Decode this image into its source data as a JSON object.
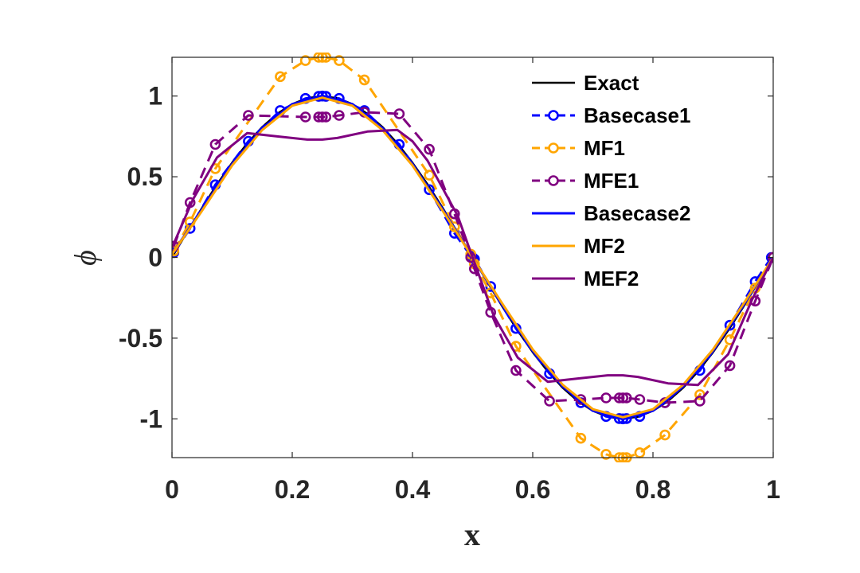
{
  "chart_data": {
    "type": "line",
    "title": "",
    "xlabel": "x",
    "ylabel": "ϕ",
    "xlim": [
      0,
      1
    ],
    "ylim": [
      -1.24,
      1.24
    ],
    "xticks": [
      0,
      0.2,
      0.4,
      0.6,
      0.8,
      1
    ],
    "xtick_labels": [
      "0",
      "0.2",
      "0.4",
      "0.6",
      "0.8",
      "1"
    ],
    "yticks": [
      -1,
      -0.5,
      0,
      0.5,
      1
    ],
    "ytick_labels": [
      "-1",
      "-0.5",
      "0",
      "0.5",
      "1"
    ],
    "grid": false,
    "legend_position": "top-right",
    "series": [
      {
        "name": "Exact",
        "color": "#000000",
        "dash": "solid",
        "markers": false,
        "x": [
          0,
          0.025,
          0.05,
          0.075,
          0.1,
          0.125,
          0.15,
          0.175,
          0.2,
          0.225,
          0.25,
          0.275,
          0.3,
          0.325,
          0.35,
          0.375,
          0.4,
          0.425,
          0.45,
          0.475,
          0.5,
          0.525,
          0.55,
          0.575,
          0.6,
          0.625,
          0.65,
          0.675,
          0.7,
          0.725,
          0.75,
          0.775,
          0.8,
          0.825,
          0.85,
          0.875,
          0.9,
          0.925,
          0.95,
          0.975,
          1
        ],
        "y": [
          0,
          0.156,
          0.309,
          0.454,
          0.588,
          0.707,
          0.809,
          0.891,
          0.951,
          0.988,
          1,
          0.988,
          0.951,
          0.891,
          0.809,
          0.707,
          0.588,
          0.454,
          0.309,
          0.156,
          0,
          -0.156,
          -0.309,
          -0.454,
          -0.588,
          -0.707,
          -0.809,
          -0.891,
          -0.951,
          -0.988,
          -1,
          -0.988,
          -0.951,
          -0.891,
          -0.809,
          -0.707,
          -0.588,
          -0.454,
          -0.309,
          -0.156,
          0
        ]
      },
      {
        "name": "Basecase1",
        "color": "#0000ff",
        "dash": "dashed",
        "markers": true,
        "x": [
          0.003,
          0.03,
          0.072,
          0.127,
          0.18,
          0.222,
          0.244,
          0.25,
          0.256,
          0.278,
          0.32,
          0.378,
          0.428,
          0.47,
          0.497,
          0.5,
          0.503,
          0.53,
          0.572,
          0.628,
          0.68,
          0.722,
          0.744,
          0.75,
          0.756,
          0.778,
          0.82,
          0.878,
          0.928,
          0.97,
          0.997
        ],
        "y": [
          0.03,
          0.18,
          0.45,
          0.72,
          0.91,
          0.985,
          0.998,
          1,
          0.998,
          0.985,
          0.91,
          0.7,
          0.42,
          0.15,
          0.01,
          0,
          -0.01,
          -0.18,
          -0.44,
          -0.72,
          -0.9,
          -0.985,
          -0.998,
          -1,
          -0.998,
          -0.985,
          -0.9,
          -0.7,
          -0.42,
          -0.15,
          0
        ]
      },
      {
        "name": "MF1",
        "color": "#ffa500",
        "dash": "dashed",
        "markers": true,
        "x": [
          0.003,
          0.03,
          0.072,
          0.18,
          0.222,
          0.244,
          0.25,
          0.256,
          0.278,
          0.32,
          0.428,
          0.47,
          0.497,
          0.503,
          0.53,
          0.572,
          0.68,
          0.722,
          0.744,
          0.75,
          0.756,
          0.778,
          0.82,
          0.878,
          0.928,
          0.97,
          1
        ],
        "y": [
          0.04,
          0.22,
          0.55,
          1.12,
          1.22,
          1.24,
          1.24,
          1.24,
          1.22,
          1.1,
          0.51,
          0.19,
          0.02,
          -0.04,
          -0.22,
          -0.55,
          -1.12,
          -1.22,
          -1.24,
          -1.24,
          -1.24,
          -1.21,
          -1.1,
          -0.85,
          -0.51,
          -0.19,
          0
        ]
      },
      {
        "name": "MFE1",
        "color": "#800080",
        "dash": "dashed",
        "markers": true,
        "x": [
          0.003,
          0.03,
          0.072,
          0.127,
          0.222,
          0.244,
          0.25,
          0.256,
          0.278,
          0.32,
          0.378,
          0.428,
          0.47,
          0.497,
          0.503,
          0.53,
          0.572,
          0.628,
          0.68,
          0.722,
          0.744,
          0.75,
          0.756,
          0.778,
          0.82,
          0.878,
          0.928,
          0.97,
          1
        ],
        "y": [
          0.07,
          0.34,
          0.7,
          0.88,
          0.87,
          0.87,
          0.87,
          0.87,
          0.88,
          0.9,
          0.89,
          0.67,
          0.27,
          0,
          -0.07,
          -0.34,
          -0.7,
          -0.89,
          -0.88,
          -0.87,
          -0.87,
          -0.87,
          -0.87,
          -0.88,
          -0.9,
          -0.89,
          -0.67,
          -0.27,
          0
        ]
      },
      {
        "name": "Basecase2",
        "color": "#0000ff",
        "dash": "solid",
        "markers": false,
        "x": [
          0,
          0.05,
          0.1,
          0.15,
          0.2,
          0.25,
          0.3,
          0.35,
          0.4,
          0.45,
          0.5,
          0.55,
          0.6,
          0.65,
          0.7,
          0.75,
          0.8,
          0.85,
          0.9,
          0.95,
          1
        ],
        "y": [
          0.02,
          0.3,
          0.58,
          0.8,
          0.95,
          1,
          0.95,
          0.8,
          0.58,
          0.3,
          0,
          -0.3,
          -0.58,
          -0.8,
          -0.95,
          -1,
          -0.95,
          -0.8,
          -0.58,
          -0.3,
          0
        ]
      },
      {
        "name": "MF2",
        "color": "#ffa500",
        "dash": "solid",
        "markers": false,
        "x": [
          0,
          0.05,
          0.1,
          0.15,
          0.2,
          0.25,
          0.3,
          0.35,
          0.4,
          0.45,
          0.5,
          0.55,
          0.6,
          0.65,
          0.7,
          0.75,
          0.8,
          0.85,
          0.9,
          0.95,
          1
        ],
        "y": [
          0.02,
          0.29,
          0.57,
          0.79,
          0.94,
          0.99,
          0.94,
          0.79,
          0.57,
          0.29,
          0,
          -0.29,
          -0.57,
          -0.79,
          -0.94,
          -0.99,
          -0.94,
          -0.79,
          -0.57,
          -0.29,
          0
        ]
      },
      {
        "name": "MEF2",
        "color": "#800080",
        "dash": "solid",
        "markers": false,
        "x": [
          0,
          0.035,
          0.075,
          0.125,
          0.175,
          0.225,
          0.25,
          0.275,
          0.325,
          0.375,
          0.4,
          0.425,
          0.475,
          0.5,
          0.535,
          0.575,
          0.625,
          0.675,
          0.725,
          0.75,
          0.775,
          0.825,
          0.875,
          0.925,
          0.965,
          1
        ],
        "y": [
          0.06,
          0.36,
          0.62,
          0.77,
          0.75,
          0.73,
          0.73,
          0.74,
          0.78,
          0.79,
          0.72,
          0.6,
          0.26,
          0,
          -0.36,
          -0.62,
          -0.77,
          -0.75,
          -0.73,
          -0.73,
          -0.74,
          -0.78,
          -0.79,
          -0.6,
          -0.26,
          0
        ]
      }
    ]
  }
}
